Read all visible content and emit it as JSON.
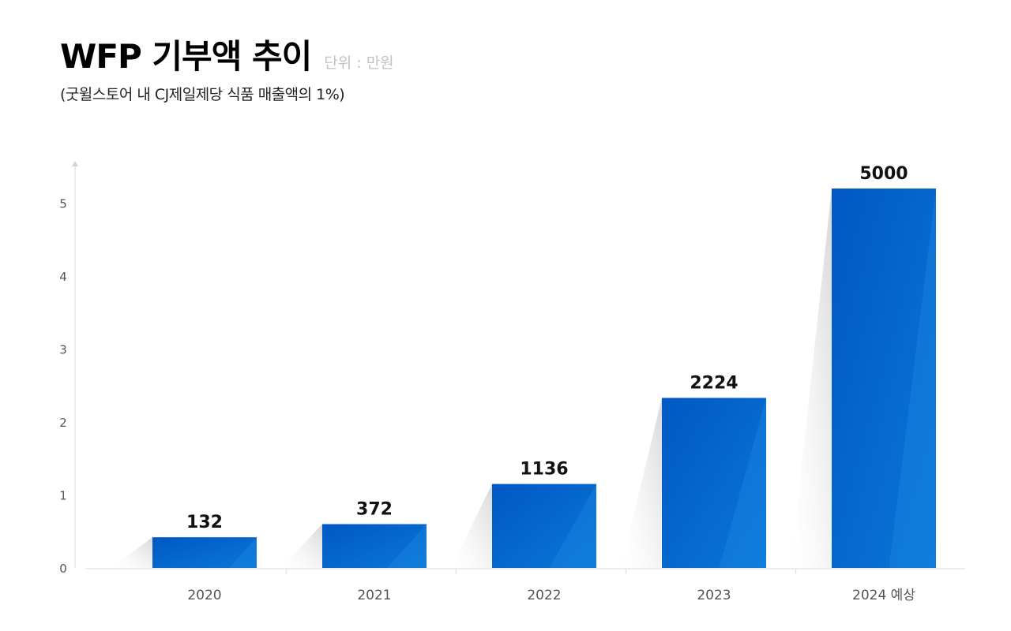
{
  "header": {
    "title": "WFP 기부액 추이",
    "unit": "단위 : 만원",
    "subtitle": "(굿윌스토어 내 CJ제일제당 식품 매출액의 1%)"
  },
  "colors": {
    "bar_top": "#0058c4",
    "bar_bottom": "#0a77d6",
    "shadow": "#d7d7d7",
    "axis": "#e2e6ee",
    "tick_text": "#555555",
    "label_text": "#111111"
  },
  "chart_data": {
    "type": "bar",
    "title": "WFP 기부액 추이",
    "categories": [
      "2020",
      "2021",
      "2022",
      "2023",
      "2024 예상"
    ],
    "values": [
      132,
      372,
      1136,
      2224,
      5000
    ],
    "data_labels": [
      "132",
      "372",
      "1136",
      "2224",
      "5000"
    ],
    "yticks": [
      "0",
      "1",
      "2",
      "3",
      "4",
      "5"
    ],
    "ylim": [
      0,
      5.5
    ],
    "bar_levels": [
      0.42,
      0.6,
      1.15,
      2.33,
      5.2
    ],
    "grid": false,
    "legend": "none"
  }
}
